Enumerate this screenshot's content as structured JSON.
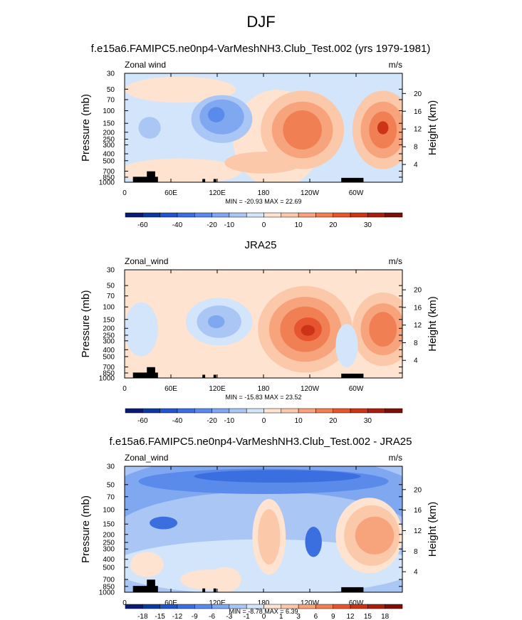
{
  "page": {
    "main_title": "DJF"
  },
  "colors": {
    "model_palette": [
      "#0a1a72",
      "#0b3a9e",
      "#1f56cc",
      "#3b6fe0",
      "#5a8bea",
      "#80a8f0",
      "#a9c6f5",
      "#d2e5fb",
      "#fde3d0",
      "#fbc8a9",
      "#f7a47c",
      "#f07f54",
      "#e75530",
      "#cc3317",
      "#a8200c",
      "#7d0f06"
    ],
    "diff_palette": [
      "#0a1a72",
      "#0b3a9e",
      "#1f56cc",
      "#3b6fe0",
      "#5a8bea",
      "#80a8f0",
      "#a9c6f5",
      "#d2e5fb",
      "#fde3d0",
      "#fbc8a9",
      "#f7a47c",
      "#f07f54",
      "#e75530",
      "#cc3317",
      "#a8200c",
      "#7d0f06"
    ],
    "topography": "#000000"
  },
  "chart_data": [
    {
      "type": "heatmap",
      "title": "f.e15a6.FAMIPC5.ne0np4-VarMeshNH3.Club_Test.002 (yrs 1979-1981)",
      "left_string": "Zonal wind",
      "right_string": "m/s",
      "ylabel": "Pressure (mb)",
      "ylabel_right": "Height (km)",
      "y_ticks": [
        "30",
        "50",
        "70",
        "100",
        "150",
        "200",
        "250",
        "300",
        "400",
        "500",
        "700",
        "850",
        "1000"
      ],
      "y_ticks_right": [
        "20",
        "16",
        "12",
        "8",
        "4"
      ],
      "x_ticks": [
        "0",
        "60E",
        "120E",
        "180",
        "120W",
        "60W"
      ],
      "stats": "MIN = -20.93  MAX = 22.69",
      "colorbar_labels": [
        "-60",
        "-40",
        "-20",
        "-10",
        "0",
        "10",
        "20",
        "30"
      ],
      "min": -20.93,
      "max": 22.69
    },
    {
      "type": "heatmap",
      "title": "JRA25",
      "left_string": "Zonal_wind",
      "right_string": "m/s",
      "ylabel": "Pressure (mb)",
      "ylabel_right": "Height (km)",
      "y_ticks": [
        "30",
        "50",
        "70",
        "100",
        "150",
        "200",
        "250",
        "300",
        "400",
        "500",
        "700",
        "850",
        "1000"
      ],
      "y_ticks_right": [
        "20",
        "16",
        "12",
        "8",
        "4"
      ],
      "x_ticks": [
        "0",
        "60E",
        "120E",
        "180",
        "120W",
        "60W"
      ],
      "stats": "MIN = -15.83  MAX = 23.52",
      "colorbar_labels": [
        "-60",
        "-40",
        "-20",
        "-10",
        "0",
        "10",
        "20",
        "30"
      ],
      "min": -15.83,
      "max": 23.52
    },
    {
      "type": "heatmap",
      "title": "f.e15a6.FAMIPC5.ne0np4-VarMeshNH3.Club_Test.002 - JRA25",
      "left_string": "Zonal_wind",
      "right_string": "m/s",
      "ylabel": "Pressure (mb)",
      "ylabel_right": "Height (km)",
      "y_ticks": [
        "30",
        "50",
        "70",
        "100",
        "150",
        "200",
        "250",
        "300",
        "400",
        "500",
        "700",
        "850",
        "1000"
      ],
      "y_ticks_right": [
        "20",
        "16",
        "12",
        "8",
        "4"
      ],
      "x_ticks": [
        "0",
        "60E",
        "120E",
        "180",
        "120W",
        "60W"
      ],
      "stats": "MIN = -8.78  MAX =  6.39",
      "colorbar_labels": [
        "-18",
        "-15",
        "-12",
        "-9",
        "-6",
        "-3",
        "-1",
        "0",
        "1",
        "3",
        "6",
        "9",
        "12",
        "15",
        "18"
      ],
      "min": -8.78,
      "max": 6.39
    }
  ]
}
